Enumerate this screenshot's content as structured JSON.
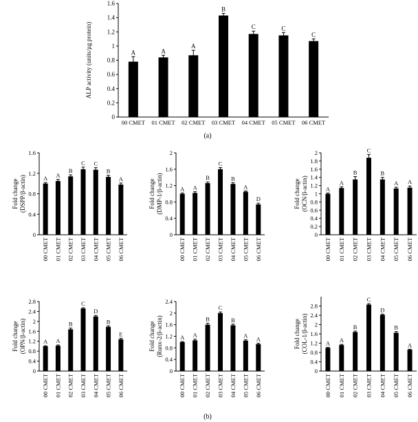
{
  "panel_labels": {
    "a": "(a)",
    "b": "(b)"
  },
  "chart_data": [
    {
      "id": "alp",
      "type": "bar",
      "title": "",
      "xlabel": "",
      "ylabel": "ALP activity (units/µg protein)",
      "ylim": [
        0,
        1.6
      ],
      "yticks": [
        "0",
        "0.2",
        "0.4",
        "0.6",
        "0.8",
        "1",
        "1.2",
        "1.4",
        "1.6"
      ],
      "categories": [
        "00 CMET",
        "01 CMET",
        "02 CMET",
        "03 CMET",
        "04 CMET",
        "05 CMET",
        "06 CMET"
      ],
      "values": [
        0.78,
        0.84,
        0.87,
        1.43,
        1.17,
        1.15,
        1.07
      ],
      "errors": [
        0.07,
        0.03,
        0.07,
        0.03,
        0.04,
        0.04,
        0.03
      ],
      "letters": [
        "A",
        "A",
        "A",
        "B",
        "C",
        "C",
        "C"
      ],
      "grid": false,
      "bar_color": "#000000"
    },
    {
      "id": "dspp",
      "type": "bar",
      "title": "",
      "xlabel": "",
      "ylabel": [
        "Fold change",
        "(DSPP/β-actin)"
      ],
      "ylim": [
        0,
        1.6
      ],
      "yticks": [
        "0",
        "0.4",
        "0.8",
        "1.2",
        "1.6"
      ],
      "categories": [
        "00 CMET",
        "01 CMET",
        "02 CMET",
        "03 CMET",
        "04 CMET",
        "05 CMET",
        "06 CMET"
      ],
      "values": [
        1.0,
        1.05,
        1.14,
        1.28,
        1.27,
        1.13,
        0.98
      ],
      "errors": [
        0.02,
        0.03,
        0.03,
        0.04,
        0.04,
        0.03,
        0.03
      ],
      "letters": [
        "A",
        "A",
        "B",
        "C",
        "C",
        "B",
        "A"
      ],
      "grid": false,
      "bar_color": "#000000"
    },
    {
      "id": "dmp1",
      "type": "bar",
      "title": "",
      "xlabel": "",
      "ylabel": [
        "Fold change",
        "(DMP-1/β-actin)"
      ],
      "ylim": [
        0,
        2
      ],
      "yticks": [
        "0",
        "0.4",
        "0.8",
        "1.2",
        "1.6",
        "2"
      ],
      "categories": [
        "00 CMET",
        "01 CMET",
        "02 CMET",
        "03 CMET",
        "04 CMET",
        "05 CMET",
        "06 CMET"
      ],
      "values": [
        1.0,
        1.02,
        1.26,
        1.6,
        1.24,
        1.05,
        0.74
      ],
      "errors": [
        0.02,
        0.03,
        0.03,
        0.04,
        0.03,
        0.02,
        0.03
      ],
      "letters": [
        "A",
        "A",
        "B",
        "C",
        "B",
        "A",
        "D"
      ],
      "grid": false,
      "bar_color": "#000000"
    },
    {
      "id": "ocn",
      "type": "bar",
      "title": "",
      "xlabel": "",
      "ylabel": [
        "Fold change",
        "(OCN/β-actin)"
      ],
      "ylim": [
        0,
        2
      ],
      "yticks": [
        "0",
        "0.2",
        "0.4",
        "0.6",
        "0.8",
        "1",
        "1.2",
        "1.4",
        "1.6",
        "1.8",
        "2"
      ],
      "categories": [
        "00 CMET",
        "01 CMET",
        "02 CMET",
        "03 CMET",
        "04 CMET",
        "05 CMET",
        "06 CMET"
      ],
      "values": [
        1.0,
        1.14,
        1.35,
        1.88,
        1.35,
        1.13,
        1.15
      ],
      "errors": [
        0.02,
        0.03,
        0.07,
        0.08,
        0.05,
        0.03,
        0.04
      ],
      "letters": [
        "A",
        "A",
        "B",
        "C",
        "B",
        "A",
        "A"
      ],
      "grid": false,
      "bar_color": "#000000"
    },
    {
      "id": "opn",
      "type": "bar",
      "title": "",
      "xlabel": "",
      "ylabel": [
        "Fold change",
        "(OPN/β-actin)"
      ],
      "ylim": [
        0,
        2.8
      ],
      "yticks": [
        "0",
        "0.4",
        "0.8",
        "1.2",
        "1.6",
        "2",
        "2.4",
        "2.8"
      ],
      "categories": [
        "00 CMET",
        "01 CMET",
        "02 CMET",
        "03 CMET",
        "04 CMET",
        "05 CMET",
        "06 CMET"
      ],
      "values": [
        1.0,
        1.02,
        1.68,
        2.52,
        2.2,
        1.78,
        1.28
      ],
      "errors": [
        0.02,
        0.03,
        0.05,
        0.03,
        0.04,
        0.04,
        0.04
      ],
      "letters": [
        "A",
        "A",
        "B",
        "C",
        "D",
        "B",
        "E"
      ],
      "grid": false,
      "bar_color": "#000000"
    },
    {
      "id": "runx2",
      "type": "bar",
      "title": "",
      "xlabel": "",
      "ylabel": [
        "Fold change",
        "(Runx-2/β-actin)"
      ],
      "ylim": [
        0,
        2.4
      ],
      "yticks": [
        "0",
        "0.4",
        "0.8",
        "1.2",
        "1.6",
        "2",
        "2.4"
      ],
      "categories": [
        "00 CMET",
        "01 CMET",
        "02 CMET",
        "03 CMET",
        "04 CMET",
        "05 CMET",
        "06 CMET"
      ],
      "values": [
        1.0,
        1.06,
        1.6,
        2.0,
        1.58,
        1.05,
        0.93
      ],
      "errors": [
        0.02,
        0.04,
        0.05,
        0.04,
        0.04,
        0.03,
        0.03
      ],
      "letters": [
        "A",
        "A",
        "B",
        "C",
        "B",
        "A",
        "A"
      ],
      "grid": false,
      "bar_color": "#000000"
    },
    {
      "id": "col1",
      "type": "bar",
      "title": "",
      "xlabel": "",
      "ylabel": [
        "Fold change",
        "(COL-1/β-actin)"
      ],
      "ylim": [
        0,
        3.2
      ],
      "yticks": [
        "0",
        "0.4",
        "0.8",
        "1.2",
        "1.6",
        "2",
        "2.4",
        "2.8"
      ],
      "categories": [
        "00 CMET",
        "01 CMET",
        "02 CMET",
        "03 CMET",
        "04 CMET",
        "05 CMET",
        "06 CMET"
      ],
      "values": [
        1.0,
        1.12,
        1.68,
        2.86,
        2.42,
        1.65,
        0.92
      ],
      "errors": [
        0.02,
        0.03,
        0.04,
        0.04,
        0.03,
        0.05,
        0.02
      ],
      "letters": [
        "A",
        "A",
        "B",
        "C",
        "D",
        "B",
        "A"
      ],
      "grid": false,
      "bar_color": "#000000"
    }
  ]
}
